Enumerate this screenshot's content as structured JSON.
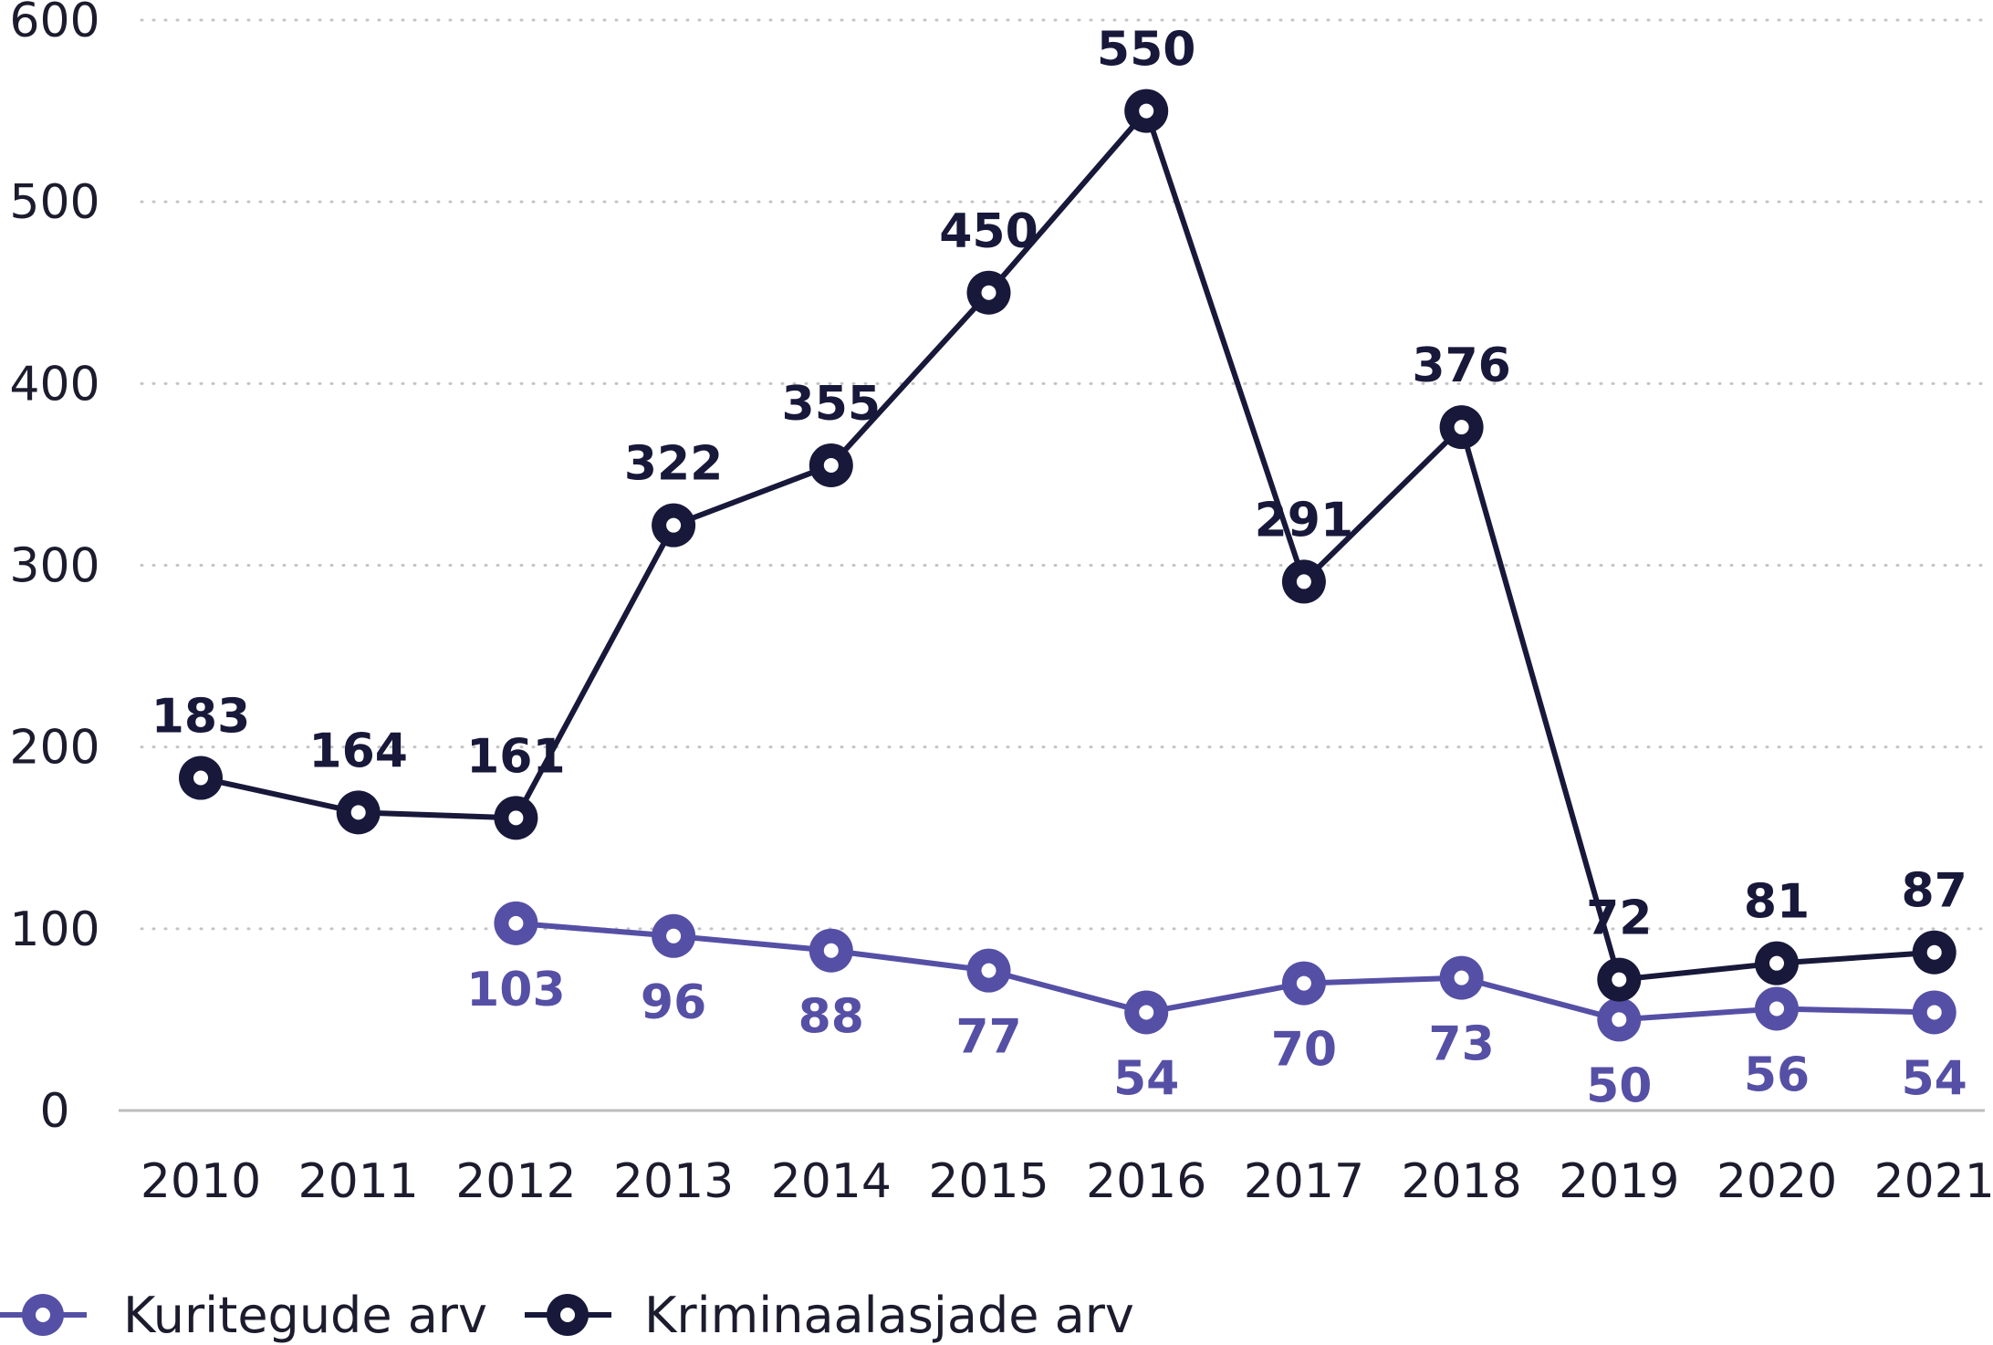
{
  "chart_data": {
    "type": "line",
    "categories": [
      "2010",
      "2011",
      "2012",
      "2013",
      "2014",
      "2015",
      "2016",
      "2017",
      "2018",
      "2019",
      "2020",
      "2021"
    ],
    "series": [
      {
        "name": "Kuritegude arv",
        "color": "#5550a5",
        "values": [
          null,
          null,
          103,
          96,
          88,
          77,
          54,
          70,
          73,
          50,
          56,
          54
        ],
        "label_position": "below"
      },
      {
        "name": "Kriminaalasjade arv",
        "color": "#18183a",
        "values": [
          183,
          164,
          161,
          322,
          355,
          450,
          550,
          291,
          376,
          72,
          81,
          87
        ],
        "label_position": "above"
      }
    ],
    "ylim": [
      0,
      600
    ],
    "yticks": [
      "0",
      "100",
      "200",
      "300",
      "400",
      "500",
      "600"
    ],
    "grid": "horizontal-dotted",
    "legend_position": "bottom-left",
    "title": "",
    "xlabel": "",
    "ylabel": ""
  }
}
